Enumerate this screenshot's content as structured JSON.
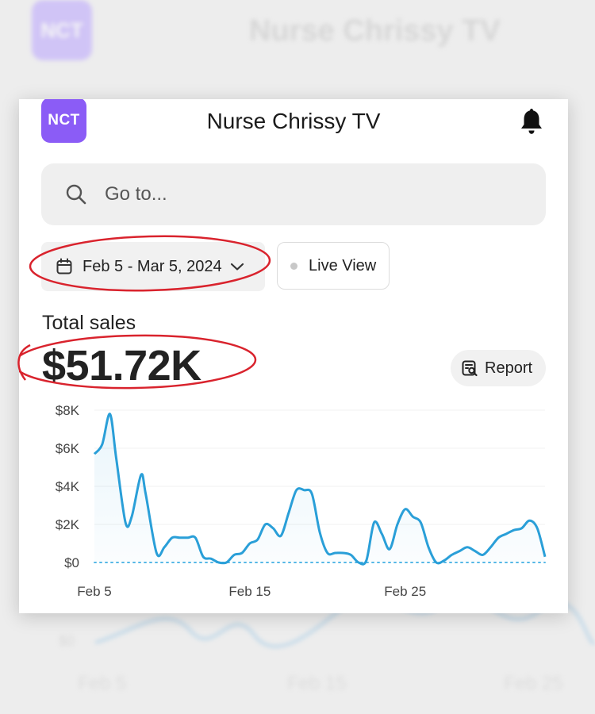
{
  "app": {
    "logo_text": "NCT",
    "title": "Nurse Chrissy TV",
    "notification_icon": "bell-icon"
  },
  "search": {
    "placeholder": "Go to...",
    "icon": "search-icon"
  },
  "filters": {
    "date_range_label": "Feb 5 - Mar 5, 2024",
    "date_icon": "calendar-icon",
    "live_view_label": "Live View"
  },
  "summary": {
    "label": "Total sales",
    "value": "$51.72K",
    "report_label": "Report",
    "report_icon": "report-icon"
  },
  "background": {
    "title": "Nurse Chrissy TV",
    "logo_text": "NCT",
    "zero_label": "$0",
    "ticks": [
      "Feb 5",
      "Feb 15",
      "Feb 25"
    ]
  },
  "colors": {
    "brand": "#8b5cf6",
    "line": "#2a9fd8",
    "annotation": "#d9232d"
  },
  "chart_data": {
    "type": "line",
    "title": "",
    "xlabel": "",
    "ylabel": "",
    "ylim": [
      0,
      8000
    ],
    "yticks": [
      "$0",
      "$2K",
      "$4K",
      "$6K",
      "$8K"
    ],
    "xticks": [
      {
        "label": "Feb 5",
        "day": 0
      },
      {
        "label": "Feb 15",
        "day": 10
      },
      {
        "label": "Feb 25",
        "day": 20
      }
    ],
    "series": [
      {
        "x": [
          0,
          0.5,
          1,
          1.4,
          2,
          2.4,
          3,
          3.3,
          4,
          4.5,
          5,
          5.5,
          6,
          6.5,
          7,
          7.5,
          8,
          8.5,
          9,
          9.5,
          10,
          10.5,
          11,
          11.5,
          12,
          12.5,
          13,
          13.5,
          14,
          14.5,
          15,
          15.5,
          16,
          16.5,
          17,
          17.5,
          18,
          18.5,
          19,
          19.5,
          20,
          20.5,
          21,
          21.5,
          22,
          22.5,
          23,
          23.5,
          24,
          24.5,
          25,
          25.5,
          26,
          26.5,
          27,
          27.5,
          28,
          28.5,
          29
        ],
        "values": [
          5700,
          6200,
          7800,
          5500,
          2100,
          2400,
          4600,
          3600,
          500,
          800,
          1300,
          1300,
          1300,
          1300,
          300,
          200,
          0,
          0,
          400,
          500,
          1000,
          1200,
          2000,
          1800,
          1400,
          2600,
          3800,
          3800,
          3600,
          1600,
          500,
          500,
          500,
          400,
          0,
          100,
          2100,
          1500,
          700,
          2000,
          2800,
          2400,
          2100,
          800,
          0,
          100,
          400,
          600,
          800,
          600,
          400,
          800,
          1300,
          1500,
          1700,
          1800,
          2200,
          1800,
          300
        ]
      }
    ]
  }
}
